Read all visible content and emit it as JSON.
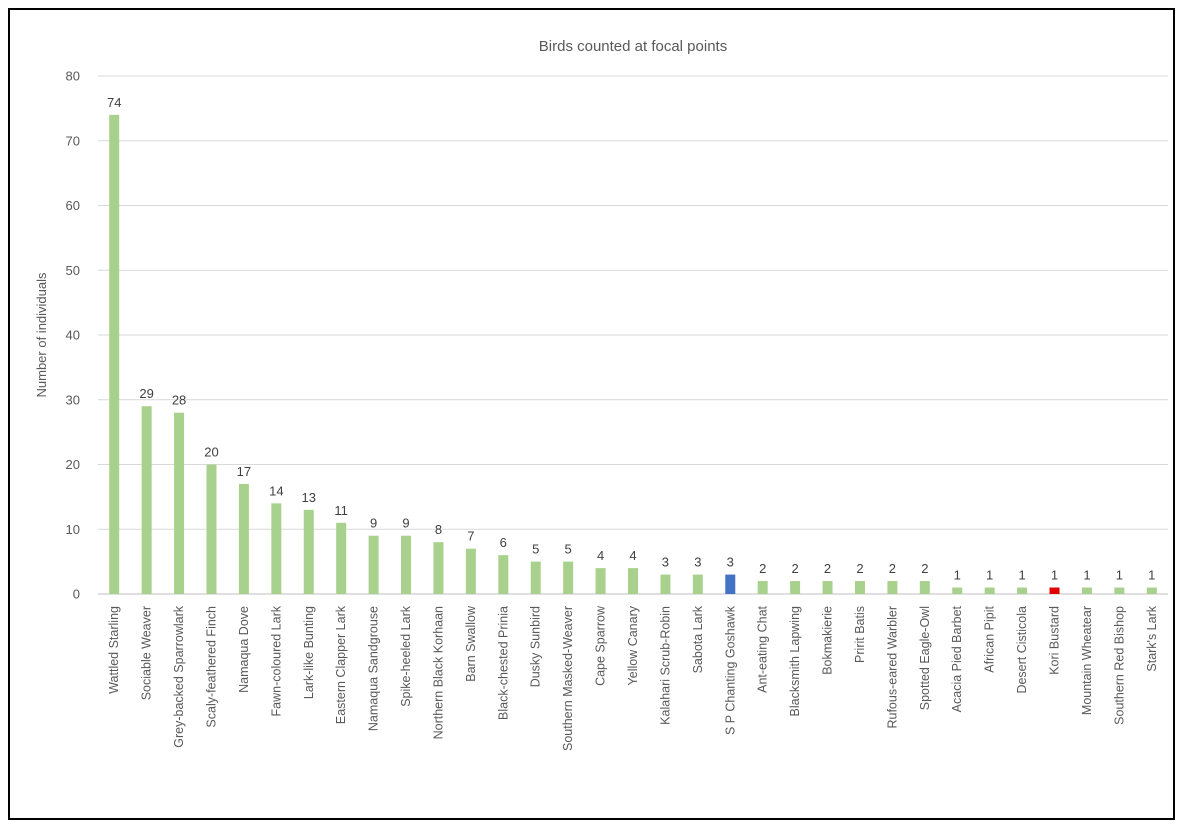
{
  "chart_data": {
    "type": "bar",
    "title": "Birds counted at focal points",
    "ylabel": "Number of individuals",
    "xlabel": "",
    "ylim": [
      0,
      80
    ],
    "yticks": [
      0,
      10,
      20,
      30,
      40,
      50,
      60,
      70,
      80
    ],
    "grid": true,
    "legend": "none",
    "colors": {
      "default": "#a9d18e",
      "highlight_blue": "#4472c4",
      "highlight_red": "#e00000"
    },
    "categories": [
      "Wattled Starling",
      "Sociable Weaver",
      "Grey-backed Sparrowlark",
      "Scaly-feathered Finch",
      "Namaqua Dove",
      "Fawn-coloured Lark",
      "Lark-like Bunting",
      "Eastern Clapper Lark",
      "Namaqua Sandgrouse",
      "Spike-heeled Lark",
      "Northern Black Korhaan",
      "Barn Swallow",
      "Black-chested Prinia",
      "Dusky Sunbird",
      "Southern Masked-Weaver",
      "Cape Sparrow",
      "Yellow Canary",
      "Kalahari Scrub-Robin",
      "Sabota Lark",
      "S P Chanting Goshawk",
      "Ant-eating Chat",
      "Blacksmith Lapwing",
      "Bokmakierie",
      "Pririt Batis",
      "Rufous-eared Warbler",
      "Spotted Eagle-Owl",
      "Acacia Pied Barbet",
      "African Pipit",
      "Desert Cisticola",
      "Kori Bustard",
      "Mountain Wheatear",
      "Southern Red Bishop",
      "Stark's Lark"
    ],
    "values": [
      74,
      29,
      28,
      20,
      17,
      14,
      13,
      11,
      9,
      9,
      8,
      7,
      6,
      5,
      5,
      4,
      4,
      3,
      3,
      3,
      2,
      2,
      2,
      2,
      2,
      2,
      1,
      1,
      1,
      1,
      1,
      1,
      1
    ],
    "bar_colors": [
      "#a9d18e",
      "#a9d18e",
      "#a9d18e",
      "#a9d18e",
      "#a9d18e",
      "#a9d18e",
      "#a9d18e",
      "#a9d18e",
      "#a9d18e",
      "#a9d18e",
      "#a9d18e",
      "#a9d18e",
      "#a9d18e",
      "#a9d18e",
      "#a9d18e",
      "#a9d18e",
      "#a9d18e",
      "#a9d18e",
      "#a9d18e",
      "#4472c4",
      "#a9d18e",
      "#a9d18e",
      "#a9d18e",
      "#a9d18e",
      "#a9d18e",
      "#a9d18e",
      "#a9d18e",
      "#a9d18e",
      "#a9d18e",
      "#e00000",
      "#a9d18e",
      "#a9d18e",
      "#a9d18e"
    ]
  }
}
